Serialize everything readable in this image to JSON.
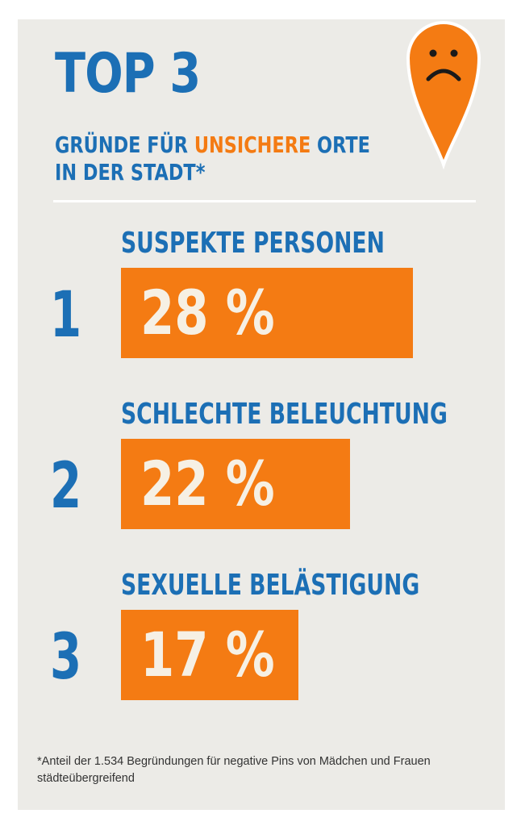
{
  "colors": {
    "blue": "#1c6fb5",
    "orange": "#f47b13",
    "background": "#ecebe7",
    "bar_text": "#f6f0e4"
  },
  "header": {
    "headline": "TOP 3",
    "subtitle_part1": "GRÜNDE FÜR ",
    "subtitle_highlight": "UNSICHERE",
    "subtitle_part2": " ORTE",
    "subtitle_line2": "IN DER STADT*",
    "pin_icon": "sad-face-location-pin-icon"
  },
  "chart_data": {
    "type": "bar",
    "orientation": "horizontal",
    "categories": [
      "SUSPEKTE PERSONEN",
      "SCHLECHTE BELEUCHTUNG",
      "SEXUELLE BELÄSTIGUNG"
    ],
    "ranks": [
      "1",
      "2",
      "3"
    ],
    "values": [
      28,
      22,
      17
    ],
    "value_labels": [
      "28 %",
      "22 %",
      "17 %"
    ],
    "unit": "%",
    "xlim": [
      0,
      28
    ]
  },
  "footnote": {
    "text": "*Anteil der 1.534 Begründungen für negative Pins von Mädchen und Frauen städteübergreifend"
  }
}
